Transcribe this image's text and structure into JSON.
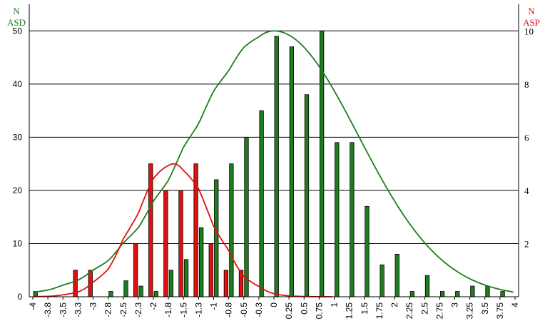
{
  "chart_data": {
    "type": "bar",
    "left_axis": {
      "label_line1": "N",
      "label_line2": "ASD",
      "ticks": [
        0,
        10,
        20,
        30,
        40,
        50
      ],
      "range": [
        0,
        55
      ],
      "color": "#1a7a1a"
    },
    "right_axis": {
      "label_line1": "N",
      "label_line2": "ASP",
      "ticks": [
        2,
        4,
        6,
        8,
        10
      ],
      "range": [
        0,
        11
      ],
      "color": "#e01010"
    },
    "categories": [
      "-4",
      "-3.8",
      "-3.5",
      "-3.3",
      "-3",
      "-2.8",
      "-2.5",
      "-2.3",
      "-2",
      "-1.8",
      "-1.5",
      "-1.3",
      "-1",
      "-0.8",
      "-0.5",
      "-0.3",
      "0",
      "0.25",
      "0.5",
      "0.75",
      "1",
      "1.25",
      "1.5",
      "1.75",
      "2",
      "2.25",
      "2.5",
      "2.75",
      "3",
      "3.25",
      "3.5",
      "3.75",
      "4"
    ],
    "series": [
      {
        "name": "ASD",
        "axis": "left",
        "color": "#1e7d1e",
        "values": [
          1,
          0,
          0,
          0,
          0,
          1,
          3,
          2,
          1,
          5,
          7,
          13,
          22,
          25,
          30,
          35,
          49,
          47,
          38,
          50,
          29,
          29,
          17,
          6,
          8,
          1,
          4,
          1,
          1,
          2,
          2,
          1,
          0
        ]
      },
      {
        "name": "ASP",
        "axis": "right",
        "color": "#e01010",
        "values": [
          0,
          0,
          0,
          1,
          1,
          0,
          0,
          2,
          5,
          4,
          4,
          5,
          2,
          1,
          1,
          0,
          0,
          0,
          0,
          0,
          0,
          0,
          0,
          0,
          0,
          0,
          0,
          0,
          0,
          0,
          0,
          0,
          0
        ]
      }
    ],
    "curves": [
      {
        "series": "ASD",
        "axis": "left",
        "color": "#1e7d1e",
        "type": "normal-fit",
        "mean": 0,
        "sd": 1.4,
        "peak": 50
      },
      {
        "series": "ASP",
        "axis": "right",
        "color": "#e01010",
        "type": "normal-fit",
        "mean": -1.7,
        "sd": 0.62,
        "peak": 5
      }
    ],
    "grid": true,
    "legend": "none"
  }
}
